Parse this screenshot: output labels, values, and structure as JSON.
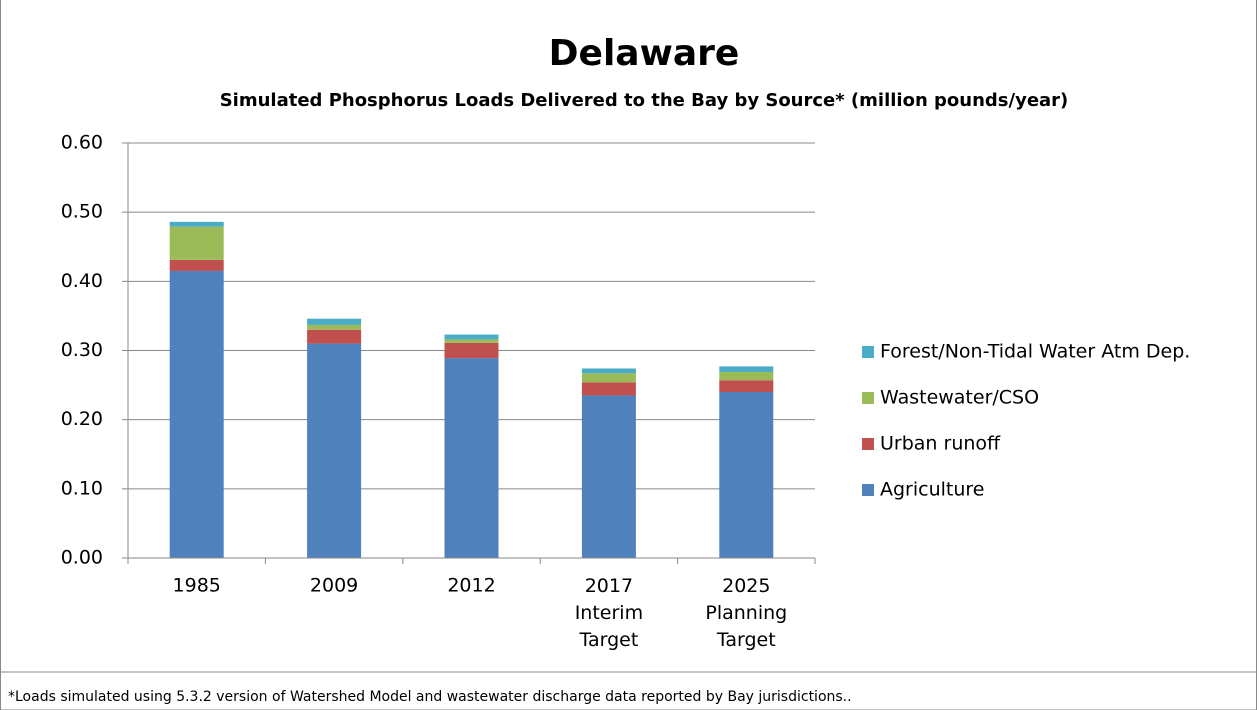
{
  "chart_data": {
    "type": "stacked_bar",
    "title": "Delaware",
    "subtitle": "Simulated Phosphorus Loads Delivered to the Bay by Source* (million pounds/year)",
    "footnote": "*Loads simulated using 5.3.2 version of Watershed Model and wastewater discharge data reported by Bay jurisdictions..",
    "categories": [
      "1985",
      "2009",
      "2012",
      "2017 Interim Target",
      "2025 Planning Target"
    ],
    "series": [
      {
        "name": "Agriculture",
        "color": "#4f81bd",
        "values": [
          0.415,
          0.31,
          0.289,
          0.235,
          0.24
        ]
      },
      {
        "name": "Urban runoff",
        "color": "#c0504d",
        "values": [
          0.016,
          0.02,
          0.022,
          0.019,
          0.017
        ]
      },
      {
        "name": "Wastewater/CSO",
        "color": "#9bbb59",
        "values": [
          0.048,
          0.007,
          0.005,
          0.013,
          0.012
        ]
      },
      {
        "name": "Forest/Non-Tidal Water Atm Dep.",
        "color": "#4bacc6",
        "values": [
          0.007,
          0.009,
          0.007,
          0.007,
          0.008
        ]
      }
    ],
    "ylim": [
      0,
      0.6
    ],
    "yticks": [
      {
        "value": 0,
        "label": "0.00"
      },
      {
        "value": 0.1,
        "label": "0.10"
      },
      {
        "value": 0.2,
        "label": "0.20"
      },
      {
        "value": 0.3,
        "label": "0.30"
      },
      {
        "value": 0.4,
        "label": "0.40"
      },
      {
        "value": 0.5,
        "label": "0.50"
      },
      {
        "value": 0.6,
        "label": "0.60"
      }
    ],
    "grid": true,
    "legend": "right"
  }
}
